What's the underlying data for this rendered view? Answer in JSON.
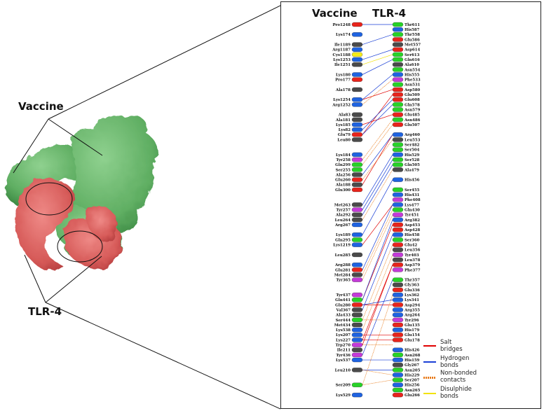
{
  "labels": {
    "vaccine_side": "Vaccine",
    "tlr_side": "TLR-4",
    "header_vaccine": "Vaccine",
    "header_tlr": "TLR-4"
  },
  "colors": {
    "vaccine_surface": "#d9605f",
    "tlr_surface": "#6db86f",
    "salt_bridge": "#e00000",
    "hydrogen_bond": "#1a3fd6",
    "non_bonded": "#e87a1a",
    "disulphide": "#f2e200"
  },
  "legend": [
    {
      "key": "salt",
      "text": "Salt bridges",
      "color": "#e00000",
      "style": "solid"
    },
    {
      "key": "hbond",
      "text": "Hydrogen bonds",
      "color": "#1a3fd6",
      "style": "solid"
    },
    {
      "key": "nonbonded",
      "text": "Non-bonded contacts",
      "color": "#e87a1a",
      "style": "dashed"
    },
    {
      "key": "disulphide",
      "text": "Disulphide bonds",
      "color": "#f2e200",
      "style": "solid"
    }
  ],
  "vaccine_residues": [
    {
      "name": "Pro1248",
      "slot": 0,
      "color": "red"
    },
    {
      "name": "Lys174",
      "slot": 2,
      "color": "blue"
    },
    {
      "name": "Ile1189",
      "slot": 4,
      "color": "gray"
    },
    {
      "name": "Arg1187",
      "slot": 5,
      "color": "blue"
    },
    {
      "name": "Cys1188",
      "slot": 6,
      "color": "yellow"
    },
    {
      "name": "Lys1253",
      "slot": 7,
      "color": "blue"
    },
    {
      "name": "Ile1251",
      "slot": 8,
      "color": "gray"
    },
    {
      "name": "Lys180",
      "slot": 10,
      "color": "blue"
    },
    {
      "name": "Pro177",
      "slot": 11,
      "color": "red"
    },
    {
      "name": "Ala178",
      "slot": 13,
      "color": "gray"
    },
    {
      "name": "Lys1254",
      "slot": 15,
      "color": "blue"
    },
    {
      "name": "Arg1252",
      "slot": 16,
      "color": "blue"
    },
    {
      "name": "Ala83",
      "slot": 18,
      "color": "gray"
    },
    {
      "name": "Ala181",
      "slot": 19,
      "color": "gray"
    },
    {
      "name": "Lys185",
      "slot": 20,
      "color": "blue"
    },
    {
      "name": "Lys82",
      "slot": 21,
      "color": "blue"
    },
    {
      "name": "Glu79",
      "slot": 22,
      "color": "red"
    },
    {
      "name": "Leu80",
      "slot": 23,
      "color": "gray"
    },
    {
      "name": "Lys184",
      "slot": 26,
      "color": "blue"
    },
    {
      "name": "Tyr258",
      "slot": 27,
      "color": "purple"
    },
    {
      "name": "Gln299",
      "slot": 28,
      "color": "green"
    },
    {
      "name": "Ser255",
      "slot": 29,
      "color": "green"
    },
    {
      "name": "Ala256",
      "slot": 30,
      "color": "gray"
    },
    {
      "name": "Glu260",
      "slot": 31,
      "color": "red"
    },
    {
      "name": "Ala188",
      "slot": 32,
      "color": "gray"
    },
    {
      "name": "Glu300",
      "slot": 33,
      "color": "red"
    },
    {
      "name": "Met263",
      "slot": 36,
      "color": "gray"
    },
    {
      "name": "Tyr257",
      "slot": 37,
      "color": "purple"
    },
    {
      "name": "Ala292",
      "slot": 38,
      "color": "gray"
    },
    {
      "name": "Leu264",
      "slot": 39,
      "color": "gray"
    },
    {
      "name": "Arg267",
      "slot": 40,
      "color": "blue"
    },
    {
      "name": "Lys189",
      "slot": 42,
      "color": "blue"
    },
    {
      "name": "Gln295",
      "slot": 43,
      "color": "green"
    },
    {
      "name": "Lys1219",
      "slot": 44,
      "color": "blue"
    },
    {
      "name": "Leu285",
      "slot": 46,
      "color": "gray"
    },
    {
      "name": "Arg288",
      "slot": 48,
      "color": "blue"
    },
    {
      "name": "Glu281",
      "slot": 49,
      "color": "red"
    },
    {
      "name": "Met284",
      "slot": 50,
      "color": "gray"
    },
    {
      "name": "Tyr365",
      "slot": 51,
      "color": "purple"
    },
    {
      "name": "Tyr437",
      "slot": 54,
      "color": "purple"
    },
    {
      "name": "Gln441",
      "slot": 55,
      "color": "green"
    },
    {
      "name": "Glu280",
      "slot": 56,
      "color": "red"
    },
    {
      "name": "Val367",
      "slot": 57,
      "color": "gray"
    },
    {
      "name": "Ala433",
      "slot": 58,
      "color": "gray"
    },
    {
      "name": "Ser444",
      "slot": 59,
      "color": "green"
    },
    {
      "name": "Met434",
      "slot": 60,
      "color": "gray"
    },
    {
      "name": "Lys538",
      "slot": 61,
      "color": "blue"
    },
    {
      "name": "Lys207",
      "slot": 62,
      "color": "blue"
    },
    {
      "name": "Lys227",
      "slot": 63,
      "color": "blue"
    },
    {
      "name": "Trp270",
      "slot": 64,
      "color": "purple"
    },
    {
      "name": "Ile211",
      "slot": 65,
      "color": "gray"
    },
    {
      "name": "Tyr436",
      "slot": 66,
      "color": "purple"
    },
    {
      "name": "Lys537",
      "slot": 67,
      "color": "blue"
    },
    {
      "name": "Leu210",
      "slot": 69,
      "color": "gray"
    },
    {
      "name": "Ser209",
      "slot": 72,
      "color": "green"
    },
    {
      "name": "Lys529",
      "slot": 74,
      "color": "blue"
    }
  ],
  "tlr_residues": [
    {
      "name": "Thr611",
      "color": "green"
    },
    {
      "name": "His587",
      "color": "blue"
    },
    {
      "name": "Thr558",
      "color": "green"
    },
    {
      "name": "Glu586",
      "color": "red"
    },
    {
      "name": "Met557",
      "color": "gray"
    },
    {
      "name": "Asp614",
      "color": "red"
    },
    {
      "name": "Ser613",
      "color": "green"
    },
    {
      "name": "Gln616",
      "color": "green"
    },
    {
      "name": "Ala610",
      "color": "gray"
    },
    {
      "name": "Asn554",
      "color": "green"
    },
    {
      "name": "His555",
      "color": "blue"
    },
    {
      "name": "Phe533",
      "color": "purple"
    },
    {
      "name": "Asn531",
      "color": "green"
    },
    {
      "name": "Asp580",
      "color": "red"
    },
    {
      "name": "Glu509",
      "color": "red"
    },
    {
      "name": "Glu608",
      "color": "red"
    },
    {
      "name": "Gln578",
      "color": "green"
    },
    {
      "name": "Asn579",
      "color": "green"
    },
    {
      "name": "Glu485",
      "color": "red"
    },
    {
      "name": "Asn486",
      "color": "green"
    },
    {
      "name": "Glu507",
      "color": "red"
    },
    {
      "name": "",
      "color": "none"
    },
    {
      "name": "Arg460",
      "color": "blue"
    },
    {
      "name": "Leu553",
      "color": "gray"
    },
    {
      "name": "Ser482",
      "color": "green"
    },
    {
      "name": "Ser504",
      "color": "green"
    },
    {
      "name": "His529",
      "color": "blue"
    },
    {
      "name": "Ser528",
      "color": "green"
    },
    {
      "name": "Gln505",
      "color": "green"
    },
    {
      "name": "Ala479",
      "color": "gray"
    },
    {
      "name": "",
      "color": "none"
    },
    {
      "name": "His456",
      "color": "blue"
    },
    {
      "name": "",
      "color": "none"
    },
    {
      "name": "Ser455",
      "color": "green"
    },
    {
      "name": "His431",
      "color": "blue"
    },
    {
      "name": "Phe408",
      "color": "purple"
    },
    {
      "name": "Lys477",
      "color": "blue"
    },
    {
      "name": "Gln430",
      "color": "green"
    },
    {
      "name": "Tyr451",
      "color": "purple"
    },
    {
      "name": "Arg382",
      "color": "blue"
    },
    {
      "name": "Asp453",
      "color": "red"
    },
    {
      "name": "Asp428",
      "color": "red"
    },
    {
      "name": "His458",
      "color": "blue"
    },
    {
      "name": "Ser360",
      "color": "green"
    },
    {
      "name": "Glu42",
      "color": "red"
    },
    {
      "name": "Leu356",
      "color": "gray"
    },
    {
      "name": "Tyr403",
      "color": "purple"
    },
    {
      "name": "Leu378",
      "color": "gray"
    },
    {
      "name": "Asp379",
      "color": "red"
    },
    {
      "name": "Phe377",
      "color": "purple"
    },
    {
      "name": "",
      "color": "none"
    },
    {
      "name": "Thr357",
      "color": "green"
    },
    {
      "name": "Gly363",
      "color": "gray"
    },
    {
      "name": "Glu336",
      "color": "red"
    },
    {
      "name": "Lys362",
      "color": "blue"
    },
    {
      "name": "Lys341",
      "color": "blue"
    },
    {
      "name": "Asp294",
      "color": "red"
    },
    {
      "name": "Arg355",
      "color": "blue"
    },
    {
      "name": "Arg264",
      "color": "blue"
    },
    {
      "name": "Tyr296",
      "color": "purple"
    },
    {
      "name": "Glu135",
      "color": "red"
    },
    {
      "name": "His179",
      "color": "blue"
    },
    {
      "name": "Glu154",
      "color": "red"
    },
    {
      "name": "Glu178",
      "color": "red"
    },
    {
      "name": "",
      "color": "none"
    },
    {
      "name": "His426",
      "color": "blue"
    },
    {
      "name": "Asn268",
      "color": "green"
    },
    {
      "name": "His159",
      "color": "blue"
    },
    {
      "name": "Gly267",
      "color": "gray"
    },
    {
      "name": "Asn205",
      "color": "green"
    },
    {
      "name": "His229",
      "color": "blue"
    },
    {
      "name": "Ser207",
      "color": "green"
    },
    {
      "name": "His256",
      "color": "blue"
    },
    {
      "name": "Asn265",
      "color": "green"
    },
    {
      "name": "Glu266",
      "color": "red"
    }
  ],
  "salt_links": [
    [
      10,
      13
    ],
    [
      14,
      18
    ],
    [
      16,
      14
    ],
    [
      24,
      22
    ],
    [
      33,
      36
    ],
    [
      40,
      40
    ],
    [
      48,
      48
    ],
    [
      49,
      48
    ],
    [
      56,
      56
    ],
    [
      62,
      62
    ],
    [
      63,
      63
    ]
  ],
  "hbond_links": [
    [
      0,
      0
    ],
    [
      2,
      2
    ],
    [
      5,
      5
    ],
    [
      7,
      7
    ],
    [
      10,
      10
    ],
    [
      15,
      15
    ],
    [
      16,
      16
    ],
    [
      22,
      22
    ],
    [
      26,
      26
    ],
    [
      27,
      27
    ],
    [
      28,
      28
    ],
    [
      31,
      31
    ],
    [
      36,
      36
    ],
    [
      40,
      39
    ],
    [
      42,
      42
    ],
    [
      51,
      51
    ],
    [
      56,
      55
    ],
    [
      67,
      67
    ],
    [
      69,
      69
    ]
  ],
  "nonbonded_links": [
    [
      11,
      11
    ],
    [
      19,
      19
    ],
    [
      20,
      20
    ],
    [
      23,
      23
    ],
    [
      29,
      29
    ],
    [
      37,
      37
    ],
    [
      38,
      38
    ],
    [
      44,
      44
    ],
    [
      46,
      46
    ],
    [
      54,
      54
    ],
    [
      59,
      59
    ],
    [
      64,
      64
    ],
    [
      69,
      70
    ],
    [
      72,
      71
    ]
  ],
  "disulphide_links": [
    [
      6,
      6
    ]
  ]
}
